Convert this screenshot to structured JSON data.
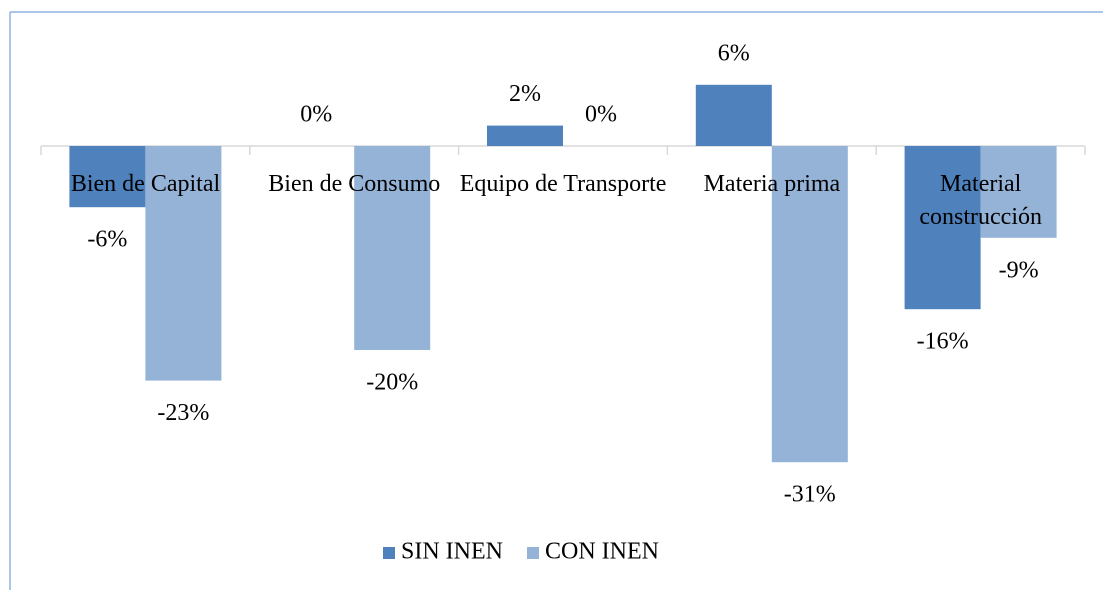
{
  "chart_data": {
    "type": "bar",
    "categories": [
      "Bien de Capital",
      "Bien de Consumo",
      "Equipo de Transporte",
      "Materia prima",
      "Material construcción"
    ],
    "series": [
      {
        "name": "SIN INEN",
        "color": "#4f81bd",
        "values": [
          -6,
          0,
          2,
          6,
          -16
        ],
        "value_labels": [
          "-6%",
          "0%",
          "2%",
          "6%",
          "-16%"
        ]
      },
      {
        "name": "CON INEN",
        "color": "#95b3d7",
        "values": [
          -23,
          -20,
          0,
          -31,
          -9
        ],
        "value_labels": [
          "-23%",
          "-20%",
          "0%",
          "-31%",
          "-9%"
        ]
      }
    ],
    "ylim": [
      -35,
      10
    ],
    "legend": "bottom"
  }
}
